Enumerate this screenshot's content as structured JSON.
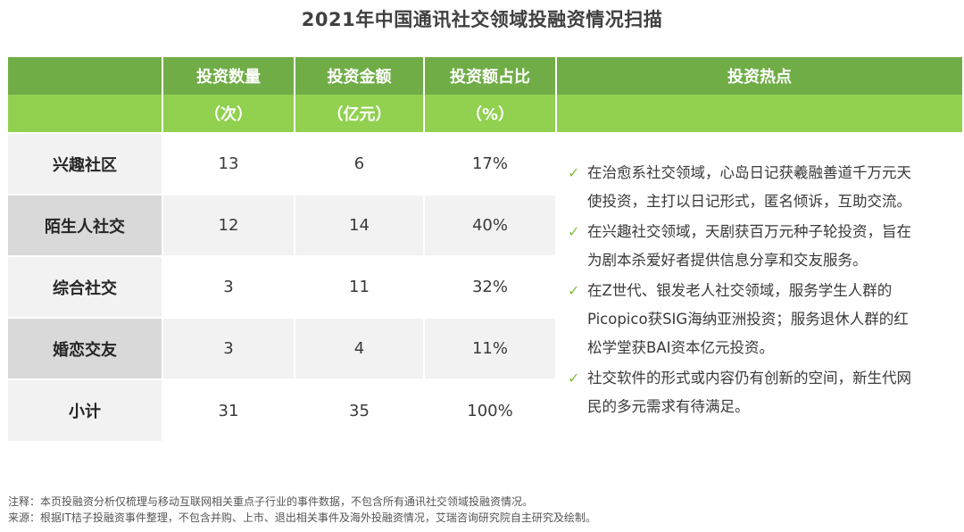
{
  "title": "2021年中国通讯社交领域投融资情况扫描",
  "header": {
    "row1": [
      "",
      "投资数量",
      "投资金额",
      "投资额占比",
      "投资热点"
    ],
    "row2": [
      "",
      "（次）",
      "（亿元）",
      "（%）",
      ""
    ]
  },
  "rows": [
    {
      "label": "兴趣社区",
      "count": "13",
      "amount": "6",
      "share": "17%"
    },
    {
      "label": "陌生人社交",
      "count": "12",
      "amount": "14",
      "share": "40%"
    },
    {
      "label": "综合社交",
      "count": "3",
      "amount": "11",
      "share": "32%"
    },
    {
      "label": "婚恋交友",
      "count": "3",
      "amount": "4",
      "share": "11%"
    },
    {
      "label": "小计",
      "count": "31",
      "amount": "35",
      "share": "100%"
    }
  ],
  "hotspots": [
    {
      "icon": "check-icon",
      "lines": [
        "在治愈系社交领域，心岛日记获羲融善道千万元天",
        "使投资，主打以日记形式，匿名倾诉，互助交流。"
      ]
    },
    {
      "icon": "check-icon",
      "lines": [
        "在兴趣社交领域，天剧获百万元种子轮投资，旨在",
        "为剧本杀爱好者提供信息分享和交友服务。"
      ]
    },
    {
      "icon": "check-icon",
      "lines": [
        "在Z世代、银发老人社交领域，服务学生人群的",
        "Picopico获SIG海纳亚洲投资；服务退休人群的红",
        "松学堂获BAI资本亿元投资。"
      ]
    },
    {
      "icon": "check-icon",
      "lines": [
        "社交软件的形式或内容仍有创新的空间，新生代网",
        "民的多元需求有待满足。"
      ]
    }
  ],
  "footnotes": {
    "note": "注释：本页投融资分析仅梳理与移动互联网相关重点子行业的事件数据，不包含所有通讯社交领域投融资情况。",
    "source": "来源：根据IT桔子投融资事件整理，不包含并购、上市、退出相关事件及海外投融资情况，艾瑞咨询研究院自主研究及绘制。"
  },
  "colors": {
    "header_dark": "#70ad47",
    "header_light": "#92d050",
    "row_light": "#f2f2f2",
    "row_dark": "#d9d9d9",
    "check": "#7fbf3f"
  }
}
